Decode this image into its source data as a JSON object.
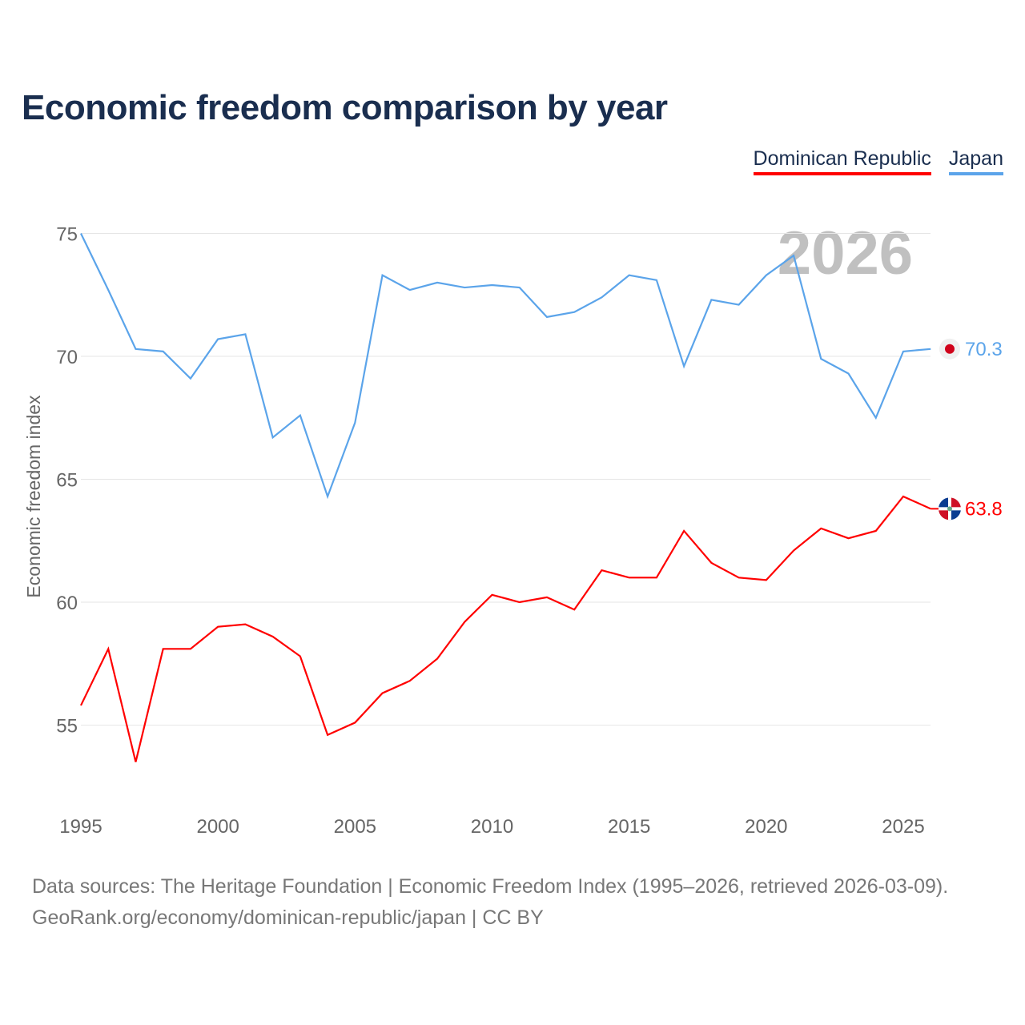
{
  "chart_data": {
    "type": "line",
    "title": "Economic freedom comparison by year",
    "xlabel": "",
    "ylabel": "Economic freedom index",
    "xlim": [
      1995,
      2026
    ],
    "ylim": [
      52,
      77
    ],
    "yticks": [
      55,
      60,
      65,
      70,
      75
    ],
    "xticks": [
      1995,
      2000,
      2005,
      2010,
      2015,
      2020,
      2025
    ],
    "watermark_year": "2026",
    "legend_position": "top-right",
    "x": [
      1995,
      1996,
      1997,
      1998,
      1999,
      2000,
      2001,
      2002,
      2003,
      2004,
      2005,
      2006,
      2007,
      2008,
      2009,
      2010,
      2011,
      2012,
      2013,
      2014,
      2015,
      2016,
      2017,
      2018,
      2019,
      2020,
      2021,
      2022,
      2023,
      2024,
      2025,
      2026
    ],
    "series": [
      {
        "name": "Dominican Republic",
        "color": "#ff0000",
        "end_label": "63.8",
        "values": [
          55.8,
          58.1,
          53.5,
          58.1,
          58.1,
          59.0,
          59.1,
          58.6,
          57.8,
          54.6,
          55.1,
          56.3,
          56.8,
          57.7,
          59.2,
          60.3,
          60.0,
          60.2,
          59.7,
          61.3,
          61.0,
          61.0,
          62.9,
          61.6,
          61.0,
          60.9,
          62.1,
          63.0,
          62.6,
          62.9,
          64.3,
          63.8
        ]
      },
      {
        "name": "Japan",
        "color": "#5ba4ea",
        "end_label": "70.3",
        "values": [
          75.0,
          72.7,
          70.3,
          70.2,
          69.1,
          70.7,
          70.9,
          66.7,
          67.6,
          64.3,
          67.3,
          73.3,
          72.7,
          73.0,
          72.8,
          72.9,
          72.8,
          71.6,
          71.8,
          72.4,
          73.3,
          73.1,
          69.6,
          72.3,
          72.1,
          73.3,
          74.1,
          69.9,
          69.3,
          67.5,
          70.2,
          70.3
        ]
      }
    ]
  },
  "footer": {
    "line1": "Data sources: The Heritage Foundation | Economic Freedom Index (1995–2026, retrieved 2026-03-09).",
    "line2": "GeoRank.org/economy/dominican-republic/japan | CC BY"
  }
}
